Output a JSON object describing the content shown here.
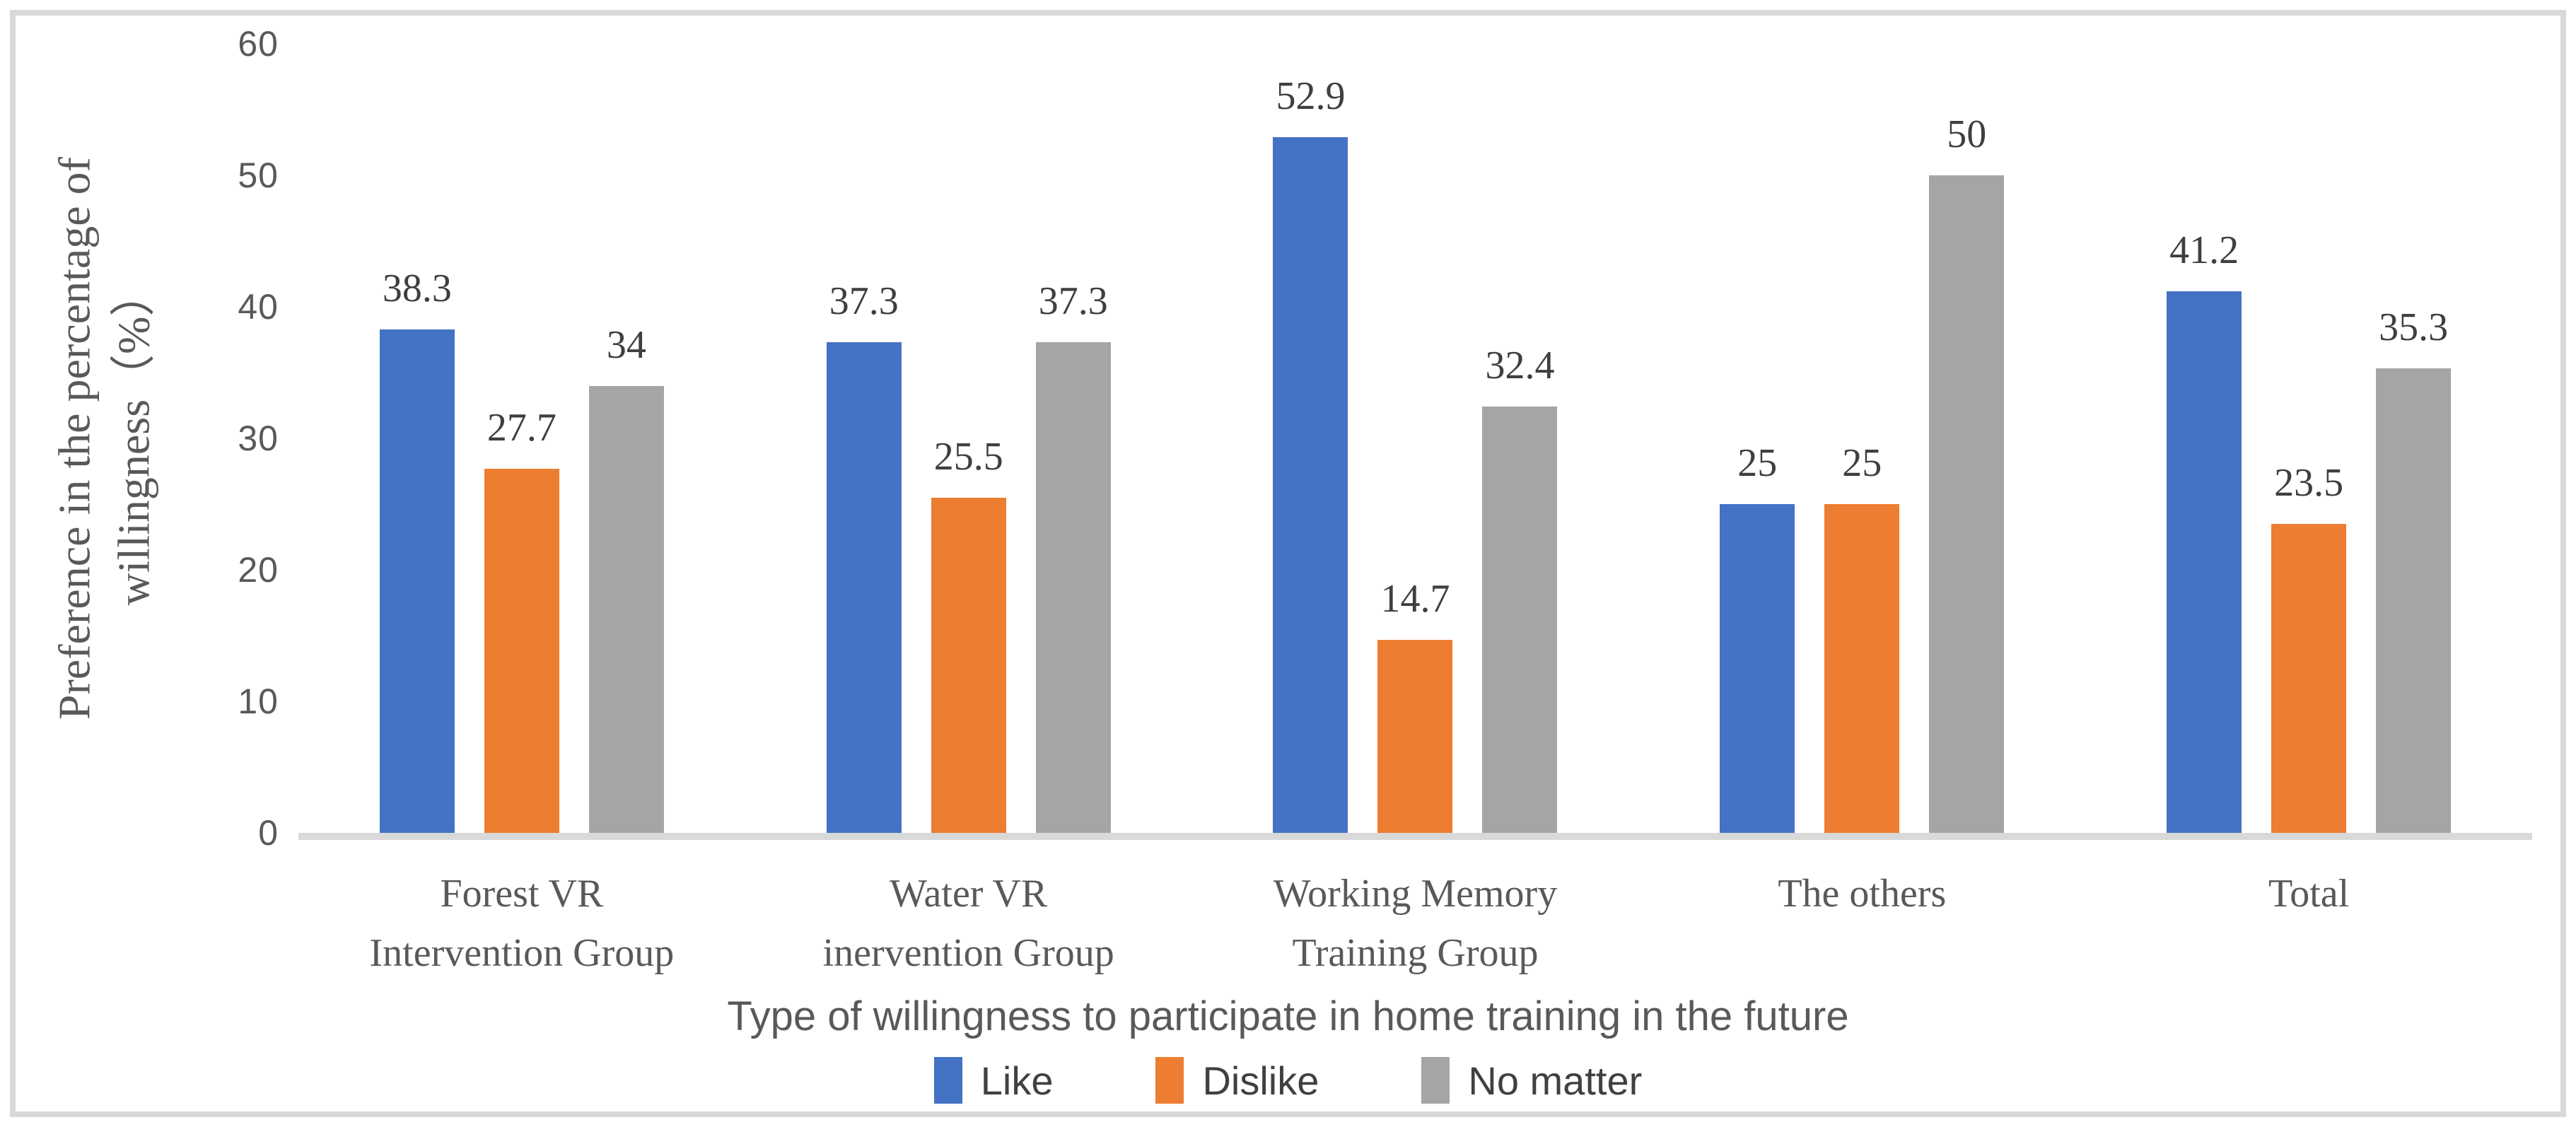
{
  "figure": {
    "background": "#FFFFFF",
    "border_color": "#D9D9D9"
  },
  "chart_data": {
    "type": "bar",
    "title": "",
    "categories": [
      "Forest VR Intervention Group",
      "Water VR inervention Group",
      "Working Memory Training Group",
      "The others",
      "Total"
    ],
    "category_lines": [
      [
        "Forest VR",
        "Intervention Group"
      ],
      [
        "Water VR",
        "inervention Group"
      ],
      [
        "Working Memory",
        "Training Group"
      ],
      [
        "The others"
      ],
      [
        "Total"
      ]
    ],
    "series": [
      {
        "name": "Like",
        "color": "#4472C4",
        "values": [
          38.3,
          37.3,
          52.9,
          25,
          41.2
        ]
      },
      {
        "name": "Dislike",
        "color": "#ED7D31",
        "values": [
          27.7,
          25.5,
          14.7,
          25,
          23.5
        ]
      },
      {
        "name": "No matter",
        "color": "#A5A5A5",
        "values": [
          34,
          37.3,
          32.4,
          50,
          35.3
        ]
      }
    ],
    "data_labels": [
      [
        "38.3",
        "37.3",
        "52.9",
        "25",
        "41.2"
      ],
      [
        "27.7",
        "25.5",
        "14.7",
        "25",
        "23.5"
      ],
      [
        "34",
        "37.3",
        "32.4",
        "50",
        "35.3"
      ]
    ],
    "xlabel": "Type of willingness to participate in home training in the future",
    "ylabel": "Preference in the percentage of willingness（%）",
    "ylabel_lines": [
      "Preference in the percentage of",
      "willingness（%）"
    ],
    "yticks": [
      0,
      10,
      20,
      30,
      40,
      50,
      60
    ],
    "ylim": [
      0,
      60
    ],
    "grid": false,
    "legend_position": "bottom",
    "axis_line_color": "#D9D9D9",
    "tick_text_color": "#595959",
    "data_label_color": "#3F3F3F"
  }
}
